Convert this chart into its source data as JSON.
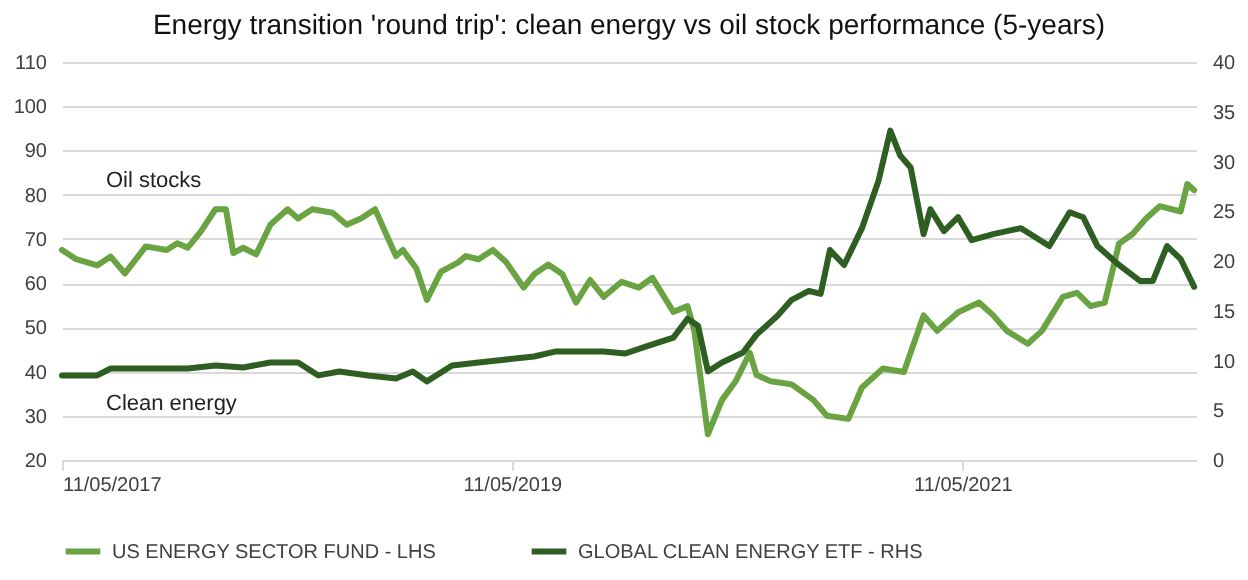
{
  "chart_data": {
    "type": "line",
    "title": "Energy transition 'round trip': clean energy vs oil stock performance (5-years)",
    "xlim": [
      "2017-05-11",
      "2022-05-25"
    ],
    "xticks": [
      {
        "value": "2017-05-11",
        "label": "11/05/2017"
      },
      {
        "value": "2019-05-11",
        "label": "11/05/2019"
      },
      {
        "value": "2021-05-11",
        "label": "11/05/2021"
      }
    ],
    "ylim": [
      20,
      110
    ],
    "yticks": [
      20,
      30,
      40,
      50,
      60,
      70,
      80,
      90,
      100,
      110
    ],
    "y2lim": [
      0,
      40
    ],
    "y2ticks": [
      0,
      5,
      10,
      15,
      20,
      25,
      30,
      35,
      40
    ],
    "grid": "y",
    "legend": "bottom",
    "annotations": [
      "Oil stocks",
      "Clean energy"
    ],
    "series": [
      {
        "name": "US ENERGY SECTOR FUND - LHS",
        "color": "#6aa342",
        "x": [
          "2017-05-11",
          "2017-06-03",
          "2017-07-07",
          "2017-07-29",
          "2017-08-21",
          "2017-09-24",
          "2017-10-28",
          "2017-11-14",
          "2017-12-01",
          "2017-12-23",
          "2018-01-15",
          "2018-02-01",
          "2018-02-13",
          "2018-03-01",
          "2018-03-22",
          "2018-04-14",
          "2018-05-12",
          "2018-05-29",
          "2018-06-21",
          "2018-07-24",
          "2018-08-16",
          "2018-09-08",
          "2018-10-01",
          "2018-11-04",
          "2018-11-15",
          "2018-12-07",
          "2018-12-24",
          "2019-01-16",
          "2019-02-13",
          "2019-02-25",
          "2019-03-18",
          "2019-04-10",
          "2019-05-02",
          "2019-05-30",
          "2019-06-16",
          "2019-07-09",
          "2019-08-01",
          "2019-08-23",
          "2019-09-15",
          "2019-10-07",
          "2019-11-05",
          "2019-12-03",
          "2019-12-25",
          "2020-01-28",
          "2020-02-20",
          "2020-03-02",
          "2020-03-24",
          "2020-04-16",
          "2020-05-08",
          "2020-05-31",
          "2020-06-11",
          "2020-07-04",
          "2020-08-07",
          "2020-09-11",
          "2020-10-03",
          "2020-11-07",
          "2020-11-29",
          "2021-01-02",
          "2021-02-05",
          "2021-03-09",
          "2021-03-31",
          "2021-05-04",
          "2021-06-07",
          "2021-06-30",
          "2021-07-22",
          "2021-08-25",
          "2021-09-17",
          "2021-10-21",
          "2021-11-13",
          "2021-12-05",
          "2021-12-28",
          "2022-01-20",
          "2022-02-11",
          "2022-03-05",
          "2022-03-27",
          "2022-04-30",
          "2022-05-11",
          "2022-05-22"
        ],
        "values": [
          67.5,
          65.4,
          64,
          66,
          62.2,
          68.3,
          67.5,
          69,
          68,
          71.8,
          76.7,
          76.7,
          66.8,
          68,
          66.5,
          73.2,
          76.7,
          74.6,
          76.7,
          75.9,
          73.2,
          74.6,
          76.7,
          66.1,
          67.5,
          63.3,
          56.2,
          62.6,
          64.7,
          66.1,
          65.4,
          67.5,
          64.7,
          59,
          62,
          64.2,
          62,
          55.6,
          60.7,
          56.9,
          60.3,
          59,
          61.2,
          53.5,
          54.8,
          49.2,
          25.8,
          33.6,
          37.8,
          44.2,
          39.2,
          37.8,
          37.1,
          33.6,
          30,
          29.3,
          36.4,
          40.7,
          39.9,
          52.7,
          49.2,
          53.4,
          55.6,
          52.7,
          49.2,
          46.3,
          49.2,
          56.9,
          57.8,
          54.8,
          55.6,
          68.9,
          71.1,
          74.6,
          77.4,
          76.2,
          82.4,
          81
        ]
      },
      {
        "name": "GLOBAL CLEAN ENERGY ETF - RHS",
        "color": "#2f5e22",
        "axis": "y2",
        "x": [
          "2017-05-11",
          "2017-07-07",
          "2017-07-29",
          "2017-12-01",
          "2018-01-15",
          "2018-03-01",
          "2018-04-14",
          "2018-05-29",
          "2018-07-01",
          "2018-08-04",
          "2018-09-20",
          "2018-11-04",
          "2018-12-01",
          "2018-12-24",
          "2019-02-03",
          "2019-03-18",
          "2019-05-02",
          "2019-06-16",
          "2019-07-20",
          "2019-09-04",
          "2019-10-07",
          "2019-11-11",
          "2019-12-14",
          "2020-01-28",
          "2020-02-20",
          "2020-03-08",
          "2020-03-24",
          "2020-04-16",
          "2020-05-20",
          "2020-06-11",
          "2020-07-15",
          "2020-08-07",
          "2020-09-04",
          "2020-09-23",
          "2020-10-08",
          "2020-10-31",
          "2020-11-29",
          "2020-12-26",
          "2021-01-14",
          "2021-01-30",
          "2021-02-16",
          "2021-03-09",
          "2021-03-20",
          "2021-04-11",
          "2021-05-04",
          "2021-05-26",
          "2021-06-30",
          "2021-08-14",
          "2021-09-29",
          "2021-11-01",
          "2021-11-23",
          "2021-12-16",
          "2022-01-20",
          "2022-02-23",
          "2022-03-16",
          "2022-04-08",
          "2022-04-30",
          "2022-05-22"
        ],
        "values": [
          8.5,
          8.5,
          9.2,
          9.2,
          9.5,
          9.3,
          9.8,
          9.8,
          8.5,
          8.9,
          8.5,
          8.2,
          8.9,
          7.9,
          9.5,
          9.8,
          10.1,
          10.4,
          10.9,
          10.9,
          10.9,
          10.7,
          11.4,
          12.3,
          14.2,
          13.5,
          8.9,
          9.8,
          10.8,
          12.6,
          14.5,
          16.1,
          17,
          16.7,
          21.1,
          19.6,
          23.3,
          28.1,
          33.1,
          30.6,
          29.4,
          22.7,
          25.2,
          23,
          24.4,
          22.1,
          22.7,
          23.3,
          21.5,
          24.9,
          24.4,
          21.5,
          19.6,
          18,
          18,
          21.5,
          20.2,
          17.4
        ]
      }
    ]
  }
}
